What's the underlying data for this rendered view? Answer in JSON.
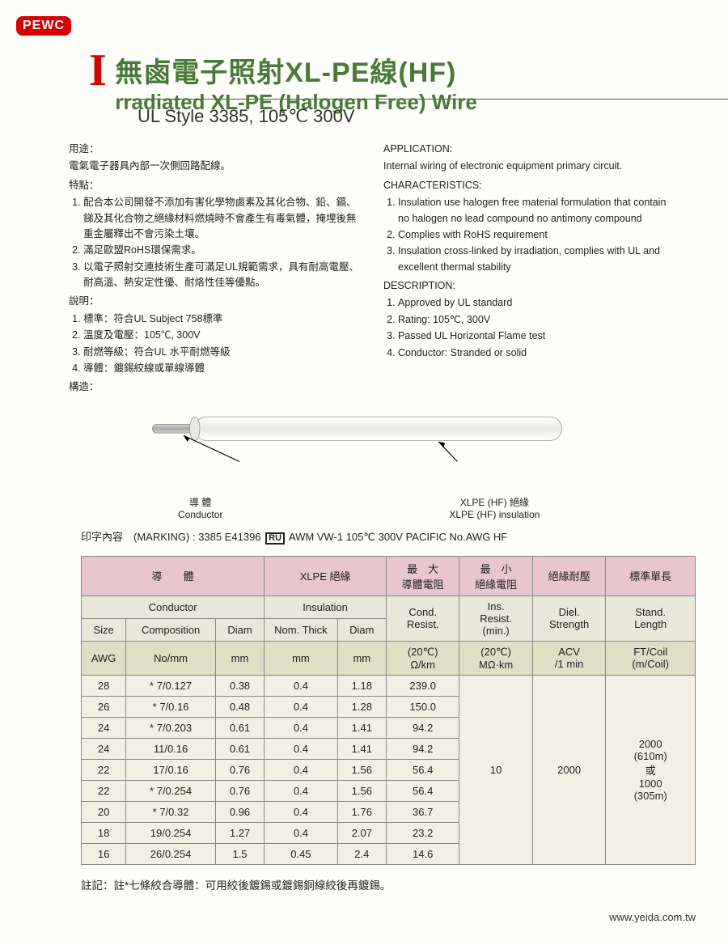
{
  "logo": "PEWC",
  "title_zh": "無鹵電子照射XL-PE線(HF)",
  "title_en": "rradiated XL-PE (Halogen Free) Wire",
  "subtitle": "UL Style 3385, 105℃ 300V",
  "left": {
    "app_h": "用途：",
    "app_t": "電氣電子器具內部一次側回路配線。",
    "char_h": "特點：",
    "char_items": [
      "配合本公司開發不添加有害化學物鹵素及其化合物、鉛、鎘、銻及其化合物之絕緣材料燃燒時不會產生有毒氣體，掩埋後無重金屬釋出不會污染土壤。",
      "滿足歐盟RoHS環保需求。",
      "以電子照射交連技術生產可滿足UL規範需求，具有耐高電壓、耐高溫、熱安定性優、耐烙性佳等優點。"
    ],
    "desc_h": "說明：",
    "desc_items": [
      "標準：符合UL Subject 758標準",
      "溫度及電壓：105℃, 300V",
      "耐燃等級：符合UL 水平耐燃等級",
      "導體：鍍錫絞線或單線導體"
    ],
    "struct_h": "構造："
  },
  "right": {
    "app_h": "APPLICATION:",
    "app_t": "Internal wiring of electronic equipment primary circuit.",
    "char_h": "CHARACTERISTICS:",
    "char_items": [
      "Insulation use halogen free material formulation that contain no halogen no lead compound no antimony compound",
      "Complies with RoHS requirement",
      "Insulation cross-linked by irradiation, complies with UL and excellent thermal stability"
    ],
    "desc_h": "DESCRIPTION:",
    "desc_items": [
      "Approved by UL standard",
      "Rating: 105℃, 300V",
      "Passed UL Horizontal Flame test",
      "Conductor: Stranded or solid"
    ]
  },
  "diagram": {
    "conductor_zh": "導 體",
    "conductor_en": "Conductor",
    "insulation_zh": "XLPE (HF) 絕緣",
    "insulation_en": "XLPE (HF) insulation",
    "colors": {
      "conductor": "#b0b0b0",
      "sheath": "#f0f0ee",
      "outline": "#888"
    }
  },
  "marking_label": "印字內容　(MARKING) : ",
  "marking_text": "3385 E41396 ",
  "marking_mark": "RU",
  "marking_rest": " AWM VW-1 105℃ 300V PACIFIC No.AWG HF",
  "table": {
    "hdr1": [
      "導　　體",
      "XLPE 絕緣",
      "最　大\n導體電阻",
      "最　小\n絕緣電阻",
      "絕緣耐壓",
      "標準單長"
    ],
    "hdr2_conductor": "Conductor",
    "hdr2_insulation": "Insulation",
    "hdr2_r": [
      "Cond.\nResist.",
      "Ins.\nResist.\n(min.)",
      "Diel.\nStrength",
      "Stand.\nLength"
    ],
    "hdr2_sub": [
      "Size",
      "Composition",
      "Diam",
      "Nom. Thick",
      "Diam"
    ],
    "hdr3": [
      "AWG",
      "No/mm",
      "mm",
      "mm",
      "mm",
      "(20℃)\nΩ/km",
      "(20℃)\nMΩ·km",
      "ACV\n/1 min",
      "FT/Coil\n(m/Coil)"
    ],
    "rows": [
      [
        "28",
        "* 7/0.127",
        "0.38",
        "0.4",
        "1.18",
        "239.0"
      ],
      [
        "26",
        "* 7/0.16",
        "0.48",
        "0.4",
        "1.28",
        "150.0"
      ],
      [
        "24",
        "* 7/0.203",
        "0.61",
        "0.4",
        "1.41",
        "94.2"
      ],
      [
        "24",
        "11/0.16",
        "0.61",
        "0.4",
        "1.41",
        "94.2"
      ],
      [
        "22",
        "17/0.16",
        "0.76",
        "0.4",
        "1.56",
        "56.4"
      ],
      [
        "22",
        "* 7/0.254",
        "0.76",
        "0.4",
        "1.56",
        "56.4"
      ],
      [
        "20",
        "* 7/0.32",
        "0.96",
        "0.4",
        "1.76",
        "36.7"
      ],
      [
        "18",
        "19/0.254",
        "1.27",
        "0.4",
        "2.07",
        "23.2"
      ],
      [
        "16",
        "26/0.254",
        "1.5",
        "0.45",
        "2.4",
        "14.6"
      ]
    ],
    "ins_resist": "10",
    "diel": "2000",
    "length": "2000\n(610m)\n或\n1000\n(305m)",
    "col_widths": [
      "55",
      "110",
      "60",
      "90",
      "60",
      "90",
      "90",
      "90",
      "110"
    ]
  },
  "footnote": "註記：註*七條絞合導體：可用絞後鍍錫或鍍錫銅線絞後再鍍錫。",
  "url": "www.yeida.com.tw"
}
